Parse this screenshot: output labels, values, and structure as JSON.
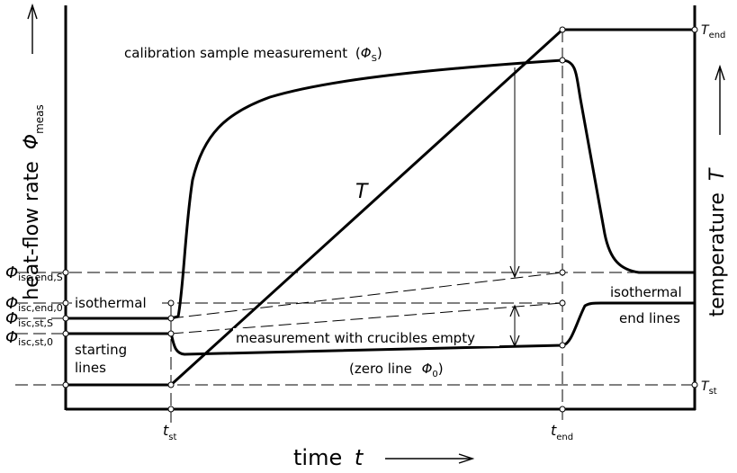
{
  "axes": {
    "y_left_label": "heat-flow rate",
    "y_left_symbol": "Φ",
    "y_left_sub": "meas",
    "y_right_label": "temperature",
    "y_right_symbol": "T",
    "x_label": "time",
    "x_symbol": "t"
  },
  "curves": {
    "calibration": "calibration sample measurement",
    "calibration_symbol": "Φ",
    "calibration_sub": "S",
    "temperature_symbol": "T",
    "empty": "measurement with crucibles empty",
    "zero_line": "(zero line",
    "zero_symbol": "Φ",
    "zero_sub": "0"
  },
  "annotations": {
    "isothermal_left": "isothermal",
    "starting_line_1": "starting",
    "starting_line_2": "lines",
    "isothermal_right": "isothermal",
    "end_lines": "end lines"
  },
  "left_ticks": [
    {
      "sym": "Φ",
      "sub": "isc,end,S"
    },
    {
      "sym": "Φ",
      "sub": "isc,end,0"
    },
    {
      "sym": "Φ",
      "sub": "isc,st,S"
    },
    {
      "sym": "Φ",
      "sub": "isc,st,0"
    }
  ],
  "right_ticks": [
    {
      "sym": "T",
      "sub": "end"
    },
    {
      "sym": "T",
      "sub": "st"
    }
  ],
  "bottom_ticks": [
    {
      "sym": "t",
      "sub": "st"
    },
    {
      "sym": "t",
      "sub": "end"
    }
  ]
}
